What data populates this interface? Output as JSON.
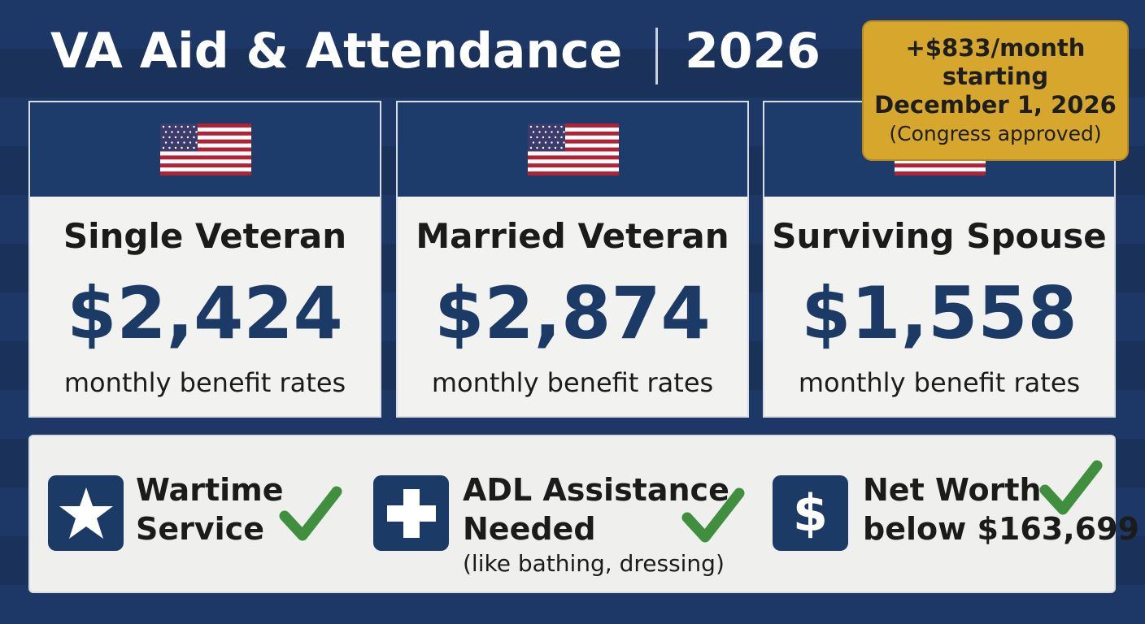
{
  "header": {
    "title": "VA Aid & Attendance",
    "year": "2026"
  },
  "badge": {
    "lines": [
      "+$833/month",
      "starting",
      "December 1, 2026",
      "(Congress approved)"
    ]
  },
  "cards": [
    {
      "label": "Single Veteran",
      "amount": "$2,424",
      "caption": "monthly benefit rates"
    },
    {
      "label": "Married Veteran",
      "amount": "$2,874",
      "caption": "monthly benefit rates"
    },
    {
      "label": "Surviving Spouse",
      "amount": "$1,558",
      "caption": "monthly benefit rates"
    }
  ],
  "requirements": [
    {
      "lines": [
        "Wartime",
        "Service"
      ]
    },
    {
      "lines": [
        "ADL Assistance",
        "Needed"
      ],
      "note": "(like bathing, dressing)"
    },
    {
      "icon": "$",
      "lines": [
        "Net Worth",
        "below $163,699"
      ]
    }
  ]
}
